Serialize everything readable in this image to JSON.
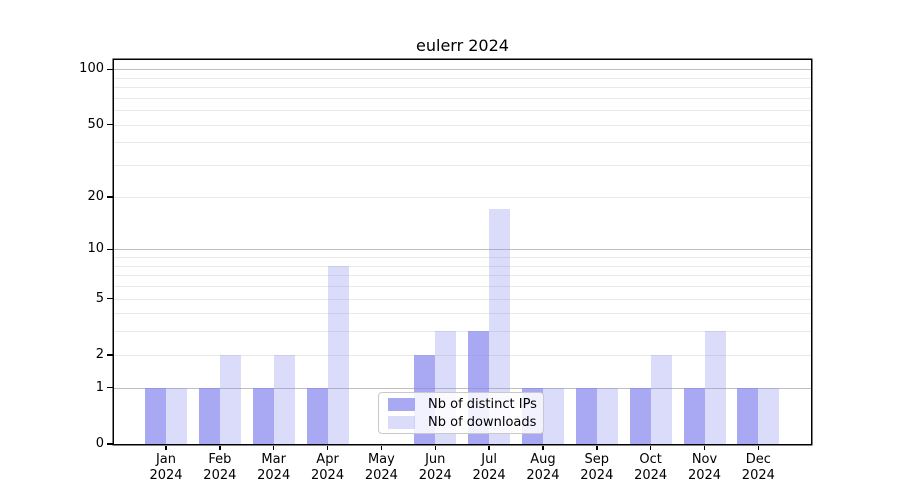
{
  "title": "eulerr 2024",
  "legend": {
    "items": [
      {
        "label": "Nb of distinct IPs"
      },
      {
        "label": "Nb of downloads"
      }
    ]
  },
  "colors": {
    "ips_bar": "rgba(136,136,238,0.72)",
    "downloads_bar": "rgba(136,136,238,0.30)",
    "ips_bar_hex_on_white": "#a9a9f1",
    "downloads_bar_hex_on_white": "#dbdbf9",
    "axis_frame": "#000000",
    "grid_minor": "#e9e9e9",
    "grid_major": "#bfbfbf",
    "legend_border": "#c9c9c9"
  },
  "chart_data": {
    "type": "bar",
    "title": "eulerr 2024",
    "categories": [
      "Jan 2024",
      "Feb 2024",
      "Mar 2024",
      "Apr 2024",
      "May 2024",
      "Jun 2024",
      "Jul 2024",
      "Aug 2024",
      "Sep 2024",
      "Oct 2024",
      "Nov 2024",
      "Dec 2024"
    ],
    "series": [
      {
        "name": "Nb of distinct IPs",
        "color": "rgba(136,136,238,0.72)",
        "values": [
          1,
          1,
          1,
          1,
          0,
          2,
          3,
          1,
          1,
          1,
          1,
          1
        ]
      },
      {
        "name": "Nb of downloads",
        "color": "rgba(136,136,238,0.30)",
        "values": [
          1,
          2,
          2,
          8,
          0,
          3,
          17,
          1,
          1,
          2,
          3,
          1
        ]
      }
    ],
    "xlabel": "",
    "ylabel": "",
    "yscale": "log1p",
    "ylim": [
      0,
      114
    ],
    "yticks": [
      0,
      1,
      2,
      5,
      10,
      20,
      50,
      100
    ],
    "ytick_labels": [
      "0",
      "1",
      "2",
      "5",
      "10",
      "20",
      "50",
      "100"
    ],
    "grid_minor_values": [
      2,
      3,
      4,
      5,
      6,
      7,
      8,
      9,
      20,
      30,
      40,
      50,
      60,
      70,
      80,
      90
    ],
    "grid_major_values": [
      1,
      10,
      100
    ],
    "grid": true,
    "legend_position": "inside-bottom-center"
  }
}
